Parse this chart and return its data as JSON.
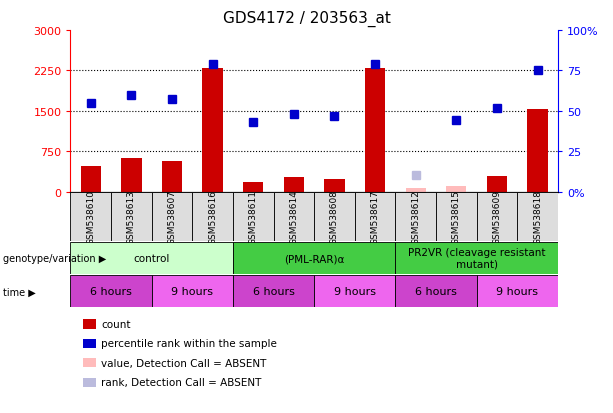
{
  "title": "GDS4172 / 203563_at",
  "samples": [
    "GSM538610",
    "GSM538613",
    "GSM538607",
    "GSM538616",
    "GSM538611",
    "GSM538614",
    "GSM538608",
    "GSM538617",
    "GSM538612",
    "GSM538615",
    "GSM538609",
    "GSM538618"
  ],
  "count_values": [
    480,
    620,
    560,
    2300,
    175,
    265,
    240,
    2300,
    60,
    95,
    295,
    1530
  ],
  "rank_values": [
    55,
    60,
    57,
    79,
    43,
    48,
    47,
    79,
    null,
    44,
    52,
    75
  ],
  "count_absent": [
    null,
    null,
    null,
    null,
    null,
    null,
    null,
    null,
    60,
    95,
    null,
    null
  ],
  "rank_absent": [
    null,
    null,
    null,
    null,
    null,
    null,
    null,
    null,
    10,
    null,
    null,
    null
  ],
  "count_detected": [
    true,
    true,
    true,
    true,
    true,
    true,
    true,
    true,
    false,
    false,
    true,
    true
  ],
  "rank_detected": [
    true,
    true,
    true,
    true,
    true,
    true,
    true,
    true,
    false,
    true,
    true,
    true
  ],
  "ylim_left": [
    0,
    3000
  ],
  "ylim_right": [
    0,
    100
  ],
  "yticks_left": [
    0,
    750,
    1500,
    2250,
    3000
  ],
  "ytick_labels_left": [
    "0",
    "750",
    "1500",
    "2250",
    "3000"
  ],
  "yticks_right": [
    0,
    25,
    50,
    75,
    100
  ],
  "ytick_labels_right": [
    "0%",
    "25",
    "50",
    "75",
    "100%"
  ],
  "bar_color": "#cc0000",
  "bar_absent_color": "#ffbbbb",
  "rank_color": "#0000cc",
  "rank_absent_color": "#bbbbdd",
  "bar_width": 0.5,
  "marker_size": 6,
  "geno_groups": [
    {
      "label": "control",
      "start": 0,
      "end": 3,
      "color": "#ccffcc"
    },
    {
      "label": "(PML-RAR)α",
      "start": 4,
      "end": 7,
      "color": "#44cc44"
    },
    {
      "label": "PR2VR (cleavage resistant\nmutant)",
      "start": 8,
      "end": 11,
      "color": "#44cc44"
    }
  ],
  "time_groups": [
    {
      "label": "6 hours",
      "start": 0,
      "end": 1,
      "color": "#cc44cc"
    },
    {
      "label": "9 hours",
      "start": 2,
      "end": 3,
      "color": "#ee66ee"
    },
    {
      "label": "6 hours",
      "start": 4,
      "end": 5,
      "color": "#cc44cc"
    },
    {
      "label": "9 hours",
      "start": 6,
      "end": 7,
      "color": "#ee66ee"
    },
    {
      "label": "6 hours",
      "start": 8,
      "end": 9,
      "color": "#cc44cc"
    },
    {
      "label": "9 hours",
      "start": 10,
      "end": 11,
      "color": "#ee66ee"
    }
  ],
  "legend_items": [
    {
      "label": "count",
      "color": "#cc0000"
    },
    {
      "label": "percentile rank within the sample",
      "color": "#0000cc"
    },
    {
      "label": "value, Detection Call = ABSENT",
      "color": "#ffbbbb"
    },
    {
      "label": "rank, Detection Call = ABSENT",
      "color": "#bbbbdd"
    }
  ],
  "sample_bg_color": "#dddddd",
  "background_color": "#ffffff"
}
